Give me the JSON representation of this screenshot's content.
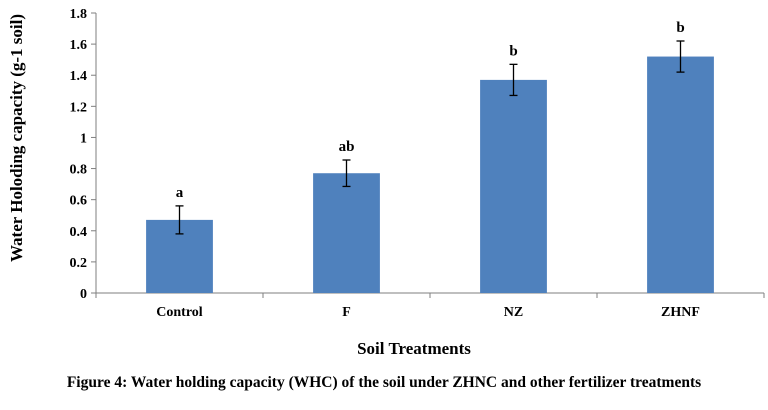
{
  "chart_data": {
    "type": "bar",
    "categories": [
      "Control",
      "F",
      "NZ",
      "ZHNF"
    ],
    "values": [
      0.47,
      0.77,
      1.37,
      1.52
    ],
    "errors": [
      0.09,
      0.085,
      0.1,
      0.1
    ],
    "significance_labels": [
      "a",
      "ab",
      "b",
      "b"
    ],
    "xlabel": "Soil Treatments",
    "ylabel": "Water Holoding capacity (g-1 soil)",
    "ylim": [
      0,
      1.8
    ],
    "yticks": [
      "0",
      "0.2",
      "0.4",
      "0.6",
      "0.8",
      "1",
      "1.2",
      "1.4",
      "1.6",
      "1.8"
    ],
    "bar_color": "#4F81BD",
    "grid": false,
    "legend": "none"
  },
  "caption": "Figure 4: Water holding capacity (WHC) of the soil under ZHNC and other fertilizer treatments"
}
